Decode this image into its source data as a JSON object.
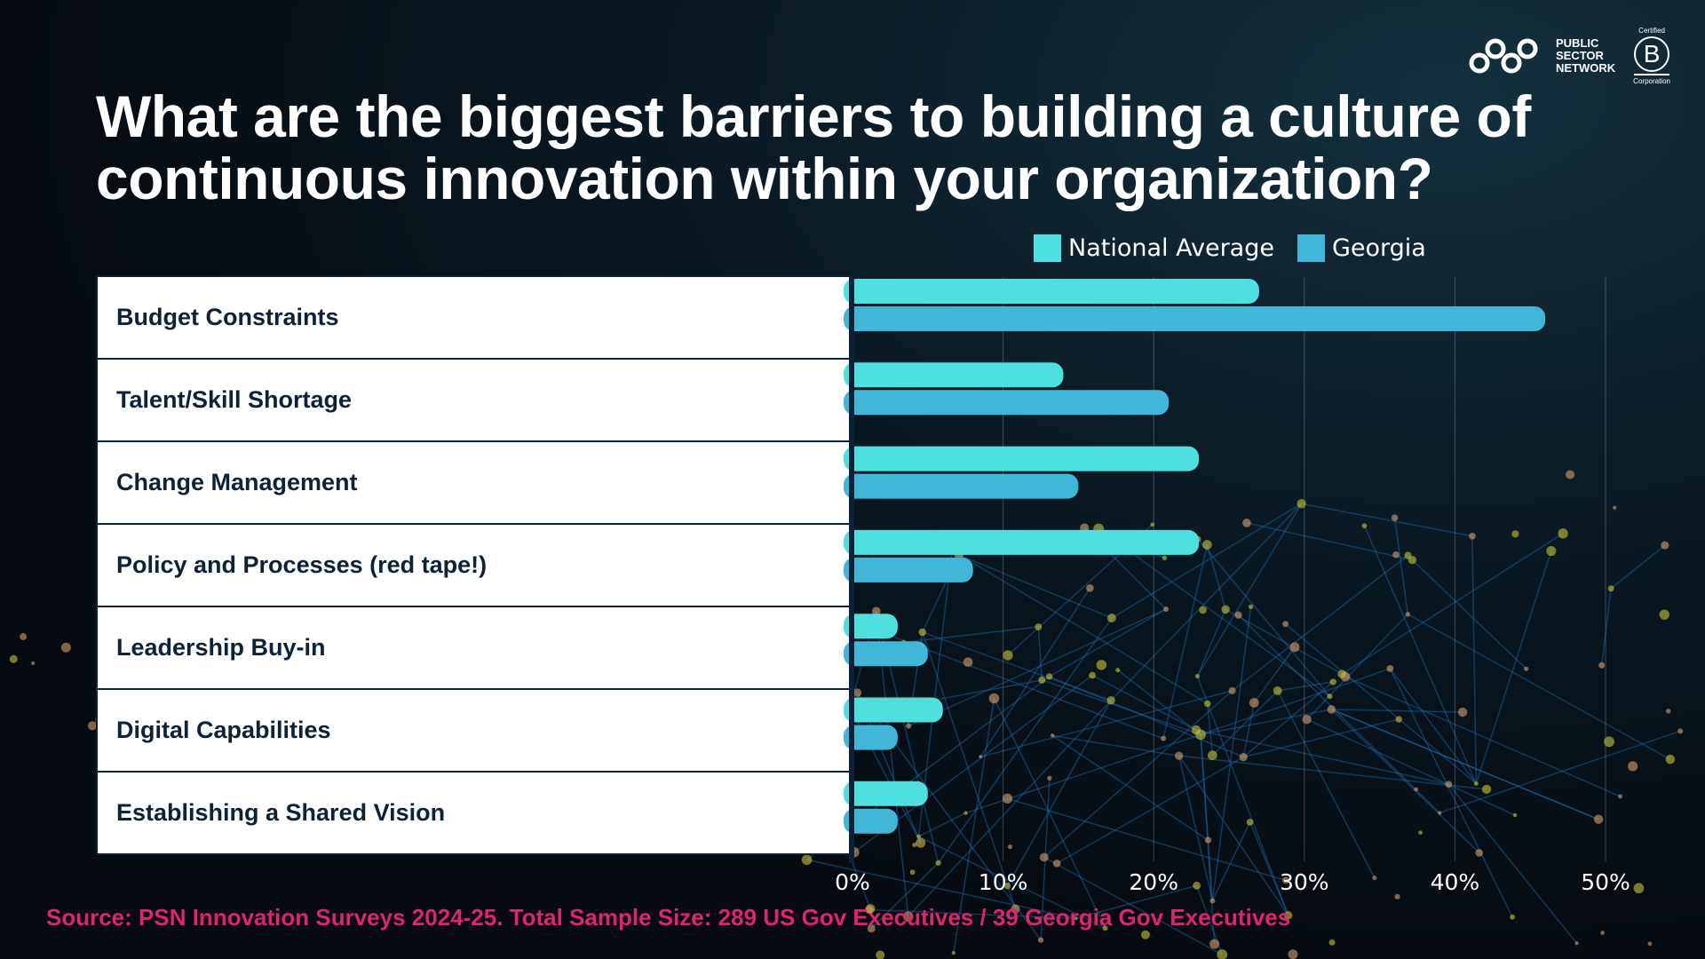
{
  "logo": {
    "psn_lines": [
      "PUBLIC",
      "SECTOR",
      "NETWORK"
    ],
    "bcorp_top": "Certified",
    "bcorp_letter": "B",
    "bcorp_bottom": "Corporation"
  },
  "source": "Source: PSN Innovation Surveys 2024-25. Total Sample Size: 289 US Gov Executives / 39 Georgia Gov Executives",
  "chart_data": {
    "type": "bar",
    "orientation": "horizontal",
    "title": "What are the biggest barriers to building a culture of continuous innovation within your organization?",
    "categories": [
      "Budget Constraints",
      "Talent/Skill Shortage",
      "Change Management",
      "Policy and Processes (red tape!)",
      "Leadership Buy-in",
      "Digital Capabilities",
      "Establishing a Shared Vision"
    ],
    "series": [
      {
        "name": "National Average",
        "color": "#4de0de",
        "values": [
          27,
          14,
          23,
          23,
          3,
          6,
          5
        ]
      },
      {
        "name": "Georgia",
        "color": "#40b7d8",
        "values": [
          46,
          21,
          15,
          8,
          5,
          3,
          3
        ]
      }
    ],
    "xlim": [
      0,
      50
    ],
    "xticks": [
      "0%",
      "10%",
      "20%",
      "30%",
      "40%",
      "50%"
    ],
    "xlabel": "",
    "ylabel": "",
    "grid": true,
    "legend": "top-right"
  }
}
